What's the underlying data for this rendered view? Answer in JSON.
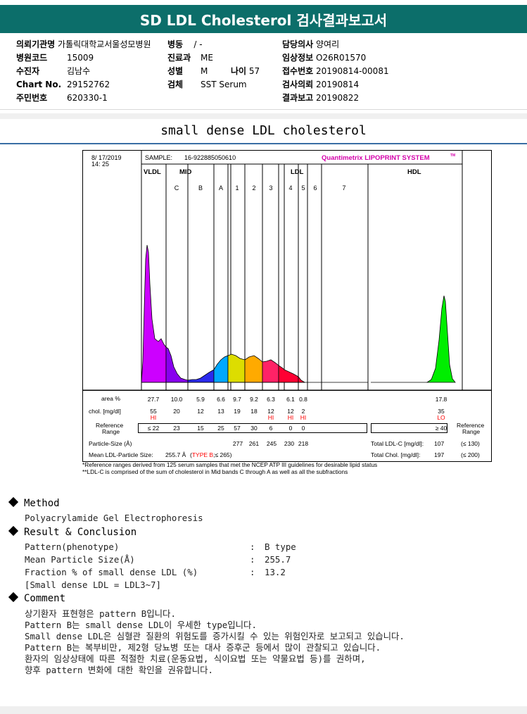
{
  "report": {
    "title": "SD LDL Cholesterol 검사결과보고서"
  },
  "info": {
    "institution_label": "의뢰기관명",
    "institution": "가톨릭대학교서울성모병원",
    "ward_label": "병동",
    "ward": "/ -",
    "doctor_label": "담당의사",
    "doctor": "양여리",
    "hospital_code_label": "병원코드",
    "hospital_code": "15009",
    "dept_label": "진료과",
    "dept": "ME",
    "clinical_info_label": "임상정보",
    "clinical_info": "O26R01570",
    "patient_label": "수진자",
    "patient": "김남수",
    "sex_label": "성별",
    "sex": "M",
    "age_label": "나이",
    "age": "57",
    "accession_label": "접수번호",
    "accession": "20190814-00081",
    "chart_label": "Chart No.",
    "chart": "29152762",
    "specimen_label": "검체",
    "specimen": "SST Serum",
    "request_label": "검사의뢰",
    "request_date": "20190814",
    "id_label": "주민번호",
    "id": "620330-1",
    "report_label": "결과보고",
    "report_date": "20190822"
  },
  "section_title": "small dense LDL cholesterol",
  "chart_data": {
    "type": "area",
    "title": "Quantimetrix LIPOPRINT SYSTEM",
    "title_sup": "TM",
    "date": "8/ 17/2019",
    "time": "14: 25",
    "sample_label": "SAMPLE:",
    "sample_id": "16-922885050610",
    "groups": [
      "VLDL",
      "MID",
      "LDL",
      "HDL"
    ],
    "bands": [
      "C",
      "B",
      "A",
      "1",
      "2",
      "3",
      "4",
      "5",
      "6",
      "7"
    ],
    "band_colors": {
      "VLDL": "#cc00ff",
      "C": "#8800ee",
      "B": "#2a2aee",
      "A": "#00a8ff",
      "1": "#dddd00",
      "2": "#ffaa00",
      "3": "#ff2266",
      "4": "#ff0033",
      "5": "#ff0033",
      "HDL": "#00ee00"
    },
    "area_label": "area %",
    "area": [
      "27.7",
      "10.0",
      "5.9",
      "6.6",
      "9.7",
      "9.2",
      "6.3",
      "6.1",
      "0.8",
      "17.8"
    ],
    "chol_label": "chol. [mg/dl]",
    "chol": [
      "55",
      "20",
      "12",
      "13",
      "19",
      "18",
      "12",
      "12",
      "2",
      "35"
    ],
    "flags": [
      "HI",
      "",
      "",
      "",
      "",
      "",
      "HI",
      "HI",
      "HI",
      "LO"
    ],
    "ref_label": "Reference Range",
    "ref": [
      "≤ 22",
      "23",
      "15",
      "25",
      "57",
      "30",
      "6",
      "0",
      "0",
      "≥ 40"
    ],
    "particle_size_label": "Particle-Size (Å)",
    "particle_sizes": [
      "277",
      "261",
      "245",
      "230",
      "218"
    ],
    "mean_size_label": "Mean LDL-Particle Size:",
    "mean_size": "255.7 Å",
    "mean_type": "TYPE B",
    "mean_type_ref": ";≤ 265)",
    "total_ldl_label": "Total LDL-C [mg/dl]:",
    "total_ldl": "107",
    "total_ldl_ref": "(≤ 130)",
    "total_chol_label": "Total Chol. [mg/dl]:",
    "total_chol": "197",
    "total_chol_ref": "(≤ 200)"
  },
  "notes": [
    "*Reference ranges derived from 125 serum samples that met the NCEP ATP III guidelines for desirable lipid status",
    "**LDL-C is comprised of the sum of cholesterol in Mid bands C through A as well as all the subfractions"
  ],
  "method": {
    "heading": "Method",
    "text": "Polyacrylamide Gel Electrophoresis"
  },
  "result": {
    "heading": "Result & Conclusion",
    "rows": [
      {
        "label": "Pattern(phenotype)",
        "value": "B type"
      },
      {
        "label": "Mean Particle Size(Å)",
        "value": "255.7"
      },
      {
        "label": "Fraction % of small dense LDL (%)",
        "value": "13.2"
      }
    ],
    "note": "[Small dense LDL = LDL3~7]"
  },
  "comment": {
    "heading": "Comment",
    "lines": [
      "상기환자 표현형은 pattern B입니다.",
      "Pattern B는 small dense LDL이 우세한 type입니다.",
      "Small dense LDL은 심혈관 질환의 위험도를 증가시킬 수 있는 위험인자로 보고되고 있습니다.",
      "Pattern B는 복부비만, 제2형 당뇨병 또는 대사 증후군 등에서 많이 관찰되고 있습니다.",
      "환자의 임상상태에 따른 적절한 치료(운동요법, 식이요법 또는 약물요법 등)를 권하며,",
      "향후 pattern 변화에 대한 확인을 권유합니다."
    ]
  }
}
